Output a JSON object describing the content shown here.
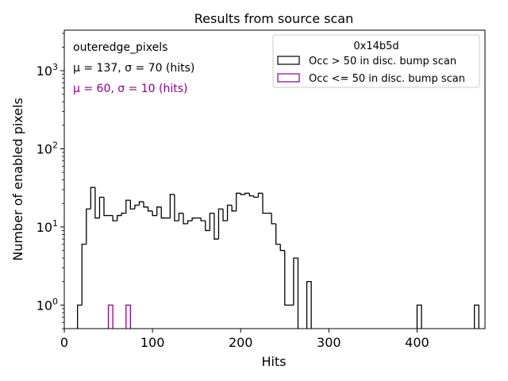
{
  "chart_data": {
    "type": "histogram",
    "title": "Results from source scan",
    "xlabel": "Hits",
    "ylabel": "Number of enabled pixels",
    "xlim": [
      0,
      477
    ],
    "ylim": [
      0.5,
      3300
    ],
    "yscale": "log",
    "x_ticks": [
      0,
      100,
      200,
      300,
      400
    ],
    "y_ticks": [
      {
        "value": 1,
        "base": "10",
        "exp": "0"
      },
      {
        "value": 10,
        "base": "10",
        "exp": "1"
      },
      {
        "value": 100,
        "base": "10",
        "exp": "2"
      },
      {
        "value": 1000,
        "base": "10",
        "exp": "3"
      }
    ],
    "bin_width": 5,
    "notes": {
      "name": "outeredge_pixels",
      "stat1": "μ = 137, σ = 70 (hits)",
      "stat2": "μ = 60, σ = 10 (hits)"
    },
    "legend": {
      "title": "0x14b5d",
      "position": "top-right"
    },
    "series": [
      {
        "name": "Occ > 50 in disc. bump scan",
        "color": "#000000",
        "bins": [
          [
            15,
            1
          ],
          [
            20,
            6
          ],
          [
            25,
            17
          ],
          [
            30,
            32
          ],
          [
            35,
            13
          ],
          [
            40,
            24
          ],
          [
            45,
            14
          ],
          [
            50,
            14
          ],
          [
            55,
            12
          ],
          [
            60,
            14
          ],
          [
            65,
            15
          ],
          [
            70,
            22
          ],
          [
            75,
            17
          ],
          [
            80,
            19
          ],
          [
            85,
            21
          ],
          [
            90,
            18
          ],
          [
            95,
            16
          ],
          [
            100,
            14
          ],
          [
            105,
            18
          ],
          [
            110,
            13
          ],
          [
            115,
            13
          ],
          [
            120,
            26
          ],
          [
            125,
            12
          ],
          [
            130,
            15
          ],
          [
            135,
            11
          ],
          [
            140,
            12
          ],
          [
            145,
            13
          ],
          [
            150,
            13
          ],
          [
            155,
            12
          ],
          [
            160,
            9
          ],
          [
            165,
            15
          ],
          [
            170,
            7
          ],
          [
            175,
            17
          ],
          [
            180,
            12
          ],
          [
            185,
            19
          ],
          [
            190,
            16
          ],
          [
            195,
            27
          ],
          [
            200,
            26
          ],
          [
            205,
            27
          ],
          [
            210,
            25
          ],
          [
            215,
            24
          ],
          [
            220,
            27
          ],
          [
            225,
            15
          ],
          [
            230,
            15
          ],
          [
            235,
            11
          ],
          [
            240,
            6
          ],
          [
            245,
            5
          ],
          [
            250,
            1
          ],
          [
            255,
            1
          ],
          [
            260,
            4
          ],
          [
            275,
            2
          ],
          [
            400,
            1
          ],
          [
            465,
            1
          ]
        ]
      },
      {
        "name": "Occ <= 50 in disc. bump scan",
        "color": "#8b008b",
        "bins": [
          [
            50,
            1
          ],
          [
            70,
            1
          ]
        ]
      }
    ]
  }
}
